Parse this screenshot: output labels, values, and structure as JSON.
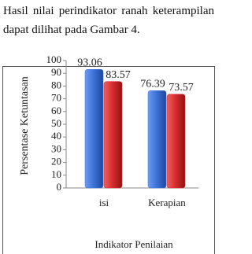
{
  "text": "Hasil nilai perindikator ranah keterampilan dapat dilihat pada Gambar 4.",
  "chart_data": {
    "type": "bar",
    "y_label": "Persentase Ketuntasan",
    "x_label": "Indikator Penilaian",
    "categories": [
      "isi",
      "Kerapian"
    ],
    "series": [
      {
        "color": "#3a6fd6",
        "values": [
          93.06,
          76.39
        ]
      },
      {
        "color": "#d42a2a",
        "values": [
          83.57,
          73.57
        ]
      }
    ],
    "ylim": [
      0,
      100
    ],
    "yticks": [
      0,
      10,
      20,
      30,
      40,
      50,
      60,
      70,
      80,
      90,
      100
    ]
  }
}
